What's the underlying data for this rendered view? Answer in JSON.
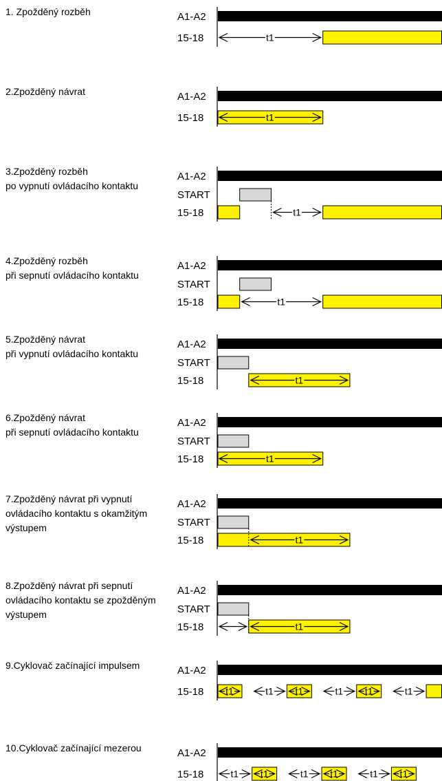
{
  "colors": {
    "bar": "#000000",
    "output": "#fff200",
    "start": "#d9d9d9",
    "outline": "#000000"
  },
  "modes": [
    {
      "title_lines": [
        "1. Zpožděný rozběh"
      ],
      "signals": [
        "A1-A2",
        "15-18"
      ],
      "output_segments": [
        [
          0.47,
          1.0
        ]
      ],
      "start_segments": [],
      "arrows": [
        {
          "from": 0.0,
          "to": 0.47,
          "label": "t1"
        }
      ],
      "dashed": []
    },
    {
      "title_lines": [
        "2.Zpožděný návrat"
      ],
      "signals": [
        "A1-A2",
        "15-18"
      ],
      "output_segments": [
        [
          0.0,
          0.47
        ]
      ],
      "start_segments": [],
      "arrows": [
        {
          "from": 0.0,
          "to": 0.47,
          "label": "t1"
        }
      ],
      "dashed": []
    },
    {
      "title_lines": [
        "3.Zpožděný rozběh",
        "po vypnutí ovládacího kontaktu"
      ],
      "signals": [
        "A1-A2",
        "START",
        "15-18"
      ],
      "output_segments": [
        [
          0.0,
          0.1
        ],
        [
          0.47,
          1.0
        ]
      ],
      "start_segments": [
        [
          0.1,
          0.24
        ]
      ],
      "arrows": [
        {
          "from": 0.24,
          "to": 0.47,
          "label": "t1"
        }
      ],
      "dashed": [
        0.24
      ]
    },
    {
      "title_lines": [
        "4.Zpožděný rozběh",
        "při sepnutí ovládacího kontaktu"
      ],
      "signals": [
        "A1-A2",
        "START",
        "15-18"
      ],
      "output_segments": [
        [
          0.0,
          0.1
        ],
        [
          0.47,
          1.0
        ]
      ],
      "start_segments": [
        [
          0.1,
          0.24
        ]
      ],
      "arrows": [
        {
          "from": 0.1,
          "to": 0.47,
          "label": "t1"
        }
      ],
      "dashed": []
    },
    {
      "title_lines": [
        "5.Zpožděný návrat",
        "při vypnutí ovládacího kontaktu"
      ],
      "signals": [
        "A1-A2",
        "START",
        "15-18"
      ],
      "output_segments": [
        [
          0.14,
          0.59
        ]
      ],
      "start_segments": [
        [
          0.0,
          0.14
        ]
      ],
      "arrows": [
        {
          "from": 0.14,
          "to": 0.59,
          "label": "t1"
        }
      ],
      "dashed": []
    },
    {
      "title_lines": [
        "6.Zpožděný návrat",
        "při sepnutí ovládacího kontaktu"
      ],
      "signals": [
        "A1-A2",
        "START",
        "15-18"
      ],
      "output_segments": [
        [
          0.0,
          0.47
        ]
      ],
      "start_segments": [
        [
          0.0,
          0.14
        ]
      ],
      "arrows": [
        {
          "from": 0.0,
          "to": 0.47,
          "label": "t1"
        }
      ],
      "dashed": []
    },
    {
      "title_lines": [
        "7.Zpožděný návrat při vypnutí",
        "ovládacího kontaktu s okamžitým",
        "výstupem"
      ],
      "signals": [
        "A1-A2",
        "START",
        "15-18"
      ],
      "output_segments": [
        [
          0.0,
          0.59
        ]
      ],
      "start_segments": [
        [
          0.0,
          0.14
        ]
      ],
      "arrows": [
        {
          "from": 0.14,
          "to": 0.59,
          "label": "t1"
        }
      ],
      "dashed": [
        0.14
      ]
    },
    {
      "title_lines": [
        "8.Zpožděný návrat při sepnutí",
        "ovládacího kontaktu se zpožděným",
        "výstupem"
      ],
      "signals": [
        "A1-A2",
        "START",
        "15-18"
      ],
      "output_segments": [
        [
          0.14,
          0.59
        ]
      ],
      "start_segments": [
        [
          0.0,
          0.14
        ]
      ],
      "arrows": [
        {
          "from": 0.0,
          "to": 0.14,
          "label": ""
        },
        {
          "from": 0.14,
          "to": 0.59,
          "label": "t1"
        }
      ],
      "dashed": [
        0.14
      ]
    },
    {
      "title_lines": [
        "9.Cyklovač začínající impulsem"
      ],
      "signals": [
        "A1-A2",
        "15-18"
      ],
      "output_segments": [
        [
          0.0,
          0.11
        ],
        [
          0.31,
          0.42
        ],
        [
          0.62,
          0.73
        ],
        [
          0.93,
          1.0
        ]
      ],
      "start_segments": [],
      "arrows": [
        {
          "from": 0.0,
          "to": 0.11,
          "label": "t1"
        },
        {
          "from": 0.155,
          "to": 0.31,
          "label": "t1"
        },
        {
          "from": 0.31,
          "to": 0.42,
          "label": "t1"
        },
        {
          "from": 0.465,
          "to": 0.62,
          "label": "t1"
        },
        {
          "from": 0.62,
          "to": 0.73,
          "label": "t1"
        },
        {
          "from": 0.775,
          "to": 0.93,
          "label": "t1"
        }
      ],
      "dashed": []
    },
    {
      "title_lines": [
        "10.Cyklovač začínající mezerou"
      ],
      "signals": [
        "A1-A2",
        "15-18"
      ],
      "output_segments": [
        [
          0.155,
          0.265
        ],
        [
          0.465,
          0.575
        ],
        [
          0.775,
          0.885
        ]
      ],
      "start_segments": [],
      "arrows": [
        {
          "from": 0.0,
          "to": 0.155,
          "label": "t1"
        },
        {
          "from": 0.155,
          "to": 0.265,
          "label": "t1"
        },
        {
          "from": 0.31,
          "to": 0.465,
          "label": "t1"
        },
        {
          "from": 0.465,
          "to": 0.575,
          "label": "t1"
        },
        {
          "from": 0.62,
          "to": 0.775,
          "label": "t1"
        },
        {
          "from": 0.775,
          "to": 0.885,
          "label": "t1"
        }
      ],
      "dashed": []
    }
  ]
}
